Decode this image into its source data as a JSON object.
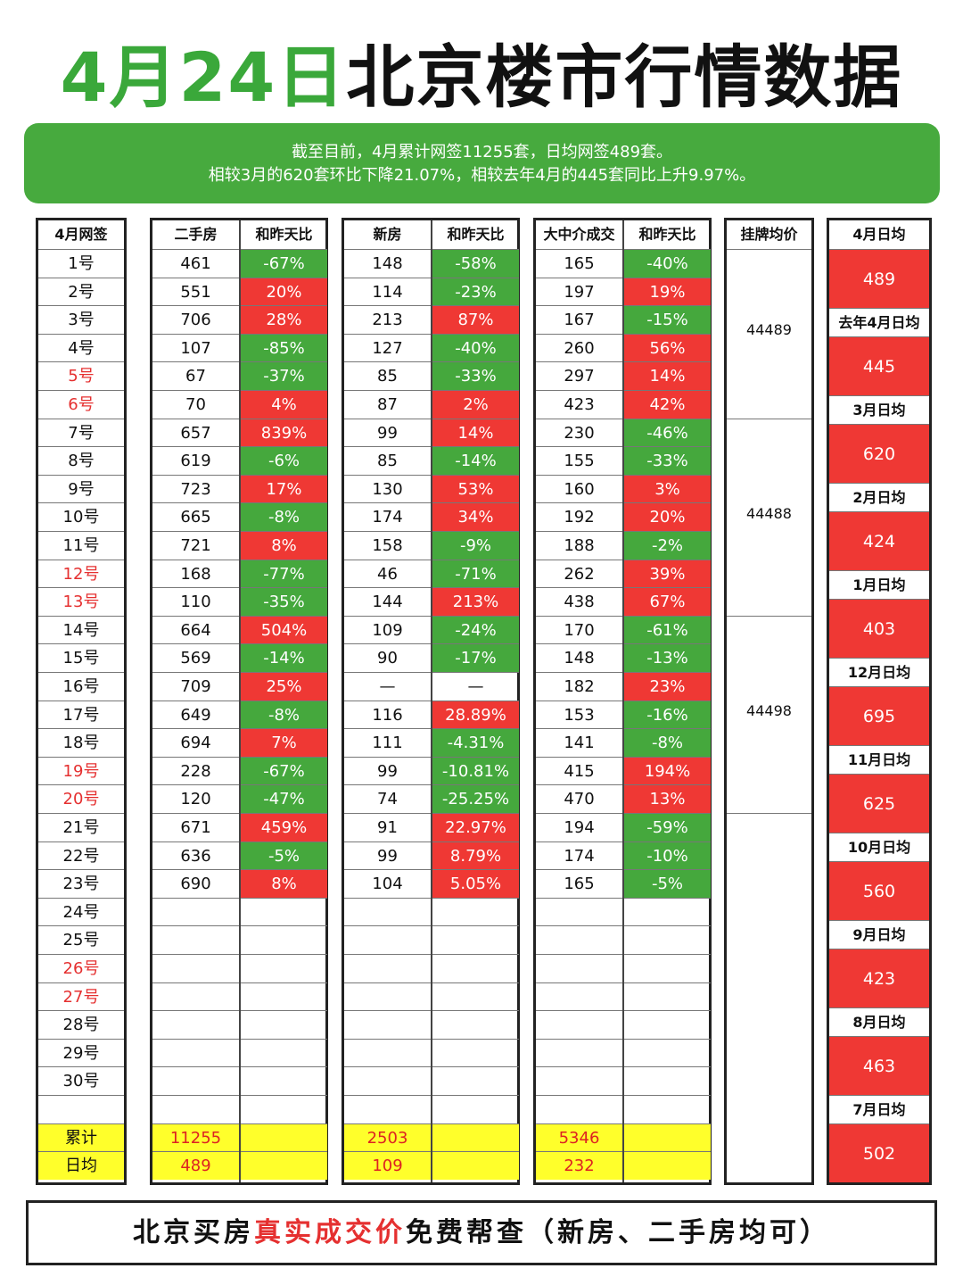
{
  "title": {
    "part1": "4月24日",
    "part2": "北京楼市行情数据"
  },
  "summary": {
    "line1": "截至目前，4月累计网签11255套，日均网签489套。",
    "line2": "相较3月的620套环比下降21.07%，相较去年4月的445套同比上升9.97%。"
  },
  "headers": {
    "date": "4月网签",
    "second_hand": "二手房",
    "change": "和昨天比",
    "new_house": "新房",
    "agency": "大中介成交",
    "listing": "挂牌均价"
  },
  "dates": [
    "1号",
    "2号",
    "3号",
    "4号",
    "5号",
    "6号",
    "7号",
    "8号",
    "9号",
    "10号",
    "11号",
    "12号",
    "13号",
    "14号",
    "15号",
    "16号",
    "17号",
    "18号",
    "19号",
    "20号",
    "21号",
    "22号",
    "23号",
    "24号",
    "25号",
    "26号",
    "27号",
    "28号",
    "29号",
    "30号",
    ""
  ],
  "weekend_dates": [
    "5号",
    "6号",
    "12号",
    "13号",
    "19号",
    "20号",
    "26号",
    "27号"
  ],
  "second_hand": {
    "values": [
      "461",
      "551",
      "706",
      "107",
      "67",
      "70",
      "657",
      "619",
      "723",
      "665",
      "721",
      "168",
      "110",
      "664",
      "569",
      "709",
      "649",
      "694",
      "228",
      "120",
      "671",
      "636",
      "690"
    ],
    "changes": [
      "-67%",
      "20%",
      "28%",
      "-85%",
      "-37%",
      "4%",
      "839%",
      "-6%",
      "17%",
      "-8%",
      "8%",
      "-77%",
      "-35%",
      "504%",
      "-14%",
      "25%",
      "-8%",
      "7%",
      "-67%",
      "-47%",
      "459%",
      "-5%",
      "8%"
    ],
    "total": "11255",
    "avg": "489"
  },
  "new_house": {
    "values": [
      "148",
      "114",
      "213",
      "127",
      "85",
      "87",
      "99",
      "85",
      "130",
      "174",
      "158",
      "46",
      "144",
      "109",
      "90",
      "—",
      "116",
      "111",
      "99",
      "74",
      "91",
      "99",
      "104"
    ],
    "changes": [
      "-58%",
      "-23%",
      "87%",
      "-40%",
      "-33%",
      "2%",
      "14%",
      "-14%",
      "53%",
      "34%",
      "-9%",
      "-71%",
      "213%",
      "-24%",
      "-17%",
      "—",
      "28.89%",
      "-4.31%",
      "-10.81%",
      "-25.25%",
      "22.97%",
      "8.79%",
      "5.05%"
    ],
    "total": "2503",
    "avg": "109"
  },
  "agency": {
    "values": [
      "165",
      "197",
      "167",
      "260",
      "297",
      "423",
      "230",
      "155",
      "160",
      "192",
      "188",
      "262",
      "438",
      "170",
      "148",
      "182",
      "153",
      "141",
      "415",
      "470",
      "194",
      "174",
      "165"
    ],
    "changes": [
      "-40%",
      "19%",
      "-15%",
      "56%",
      "14%",
      "42%",
      "-46%",
      "-33%",
      "3%",
      "20%",
      "-2%",
      "39%",
      "67%",
      "-61%",
      "-13%",
      "23%",
      "-16%",
      "-8%",
      "194%",
      "13%",
      "-59%",
      "-10%",
      "-5%"
    ],
    "total": "5346",
    "avg": "232"
  },
  "totals": {
    "total_label": "累计",
    "avg_label": "日均"
  },
  "listing_prices": [
    "44489",
    "44488",
    "44498",
    ""
  ],
  "averages": [
    {
      "label": "4月日均",
      "value": "489"
    },
    {
      "label": "去年4月日均",
      "value": "445"
    },
    {
      "label": "3月日均",
      "value": "620"
    },
    {
      "label": "2月日均",
      "value": "424"
    },
    {
      "label": "1月日均",
      "value": "403"
    },
    {
      "label": "12月日均",
      "value": "695"
    },
    {
      "label": "11月日均",
      "value": "625"
    },
    {
      "label": "10月日均",
      "value": "560"
    },
    {
      "label": "9月日均",
      "value": "423"
    },
    {
      "label": "8月日均",
      "value": "463"
    },
    {
      "label": "7月日均",
      "value": "502"
    }
  ],
  "footer": {
    "part1": "北京买房",
    "highlight": "真实成交价",
    "part2": "免费帮查（新房、二手房均可）"
  },
  "colors": {
    "green": "#45a83d",
    "red": "#ef3834",
    "yellow": "#ffff2b"
  }
}
